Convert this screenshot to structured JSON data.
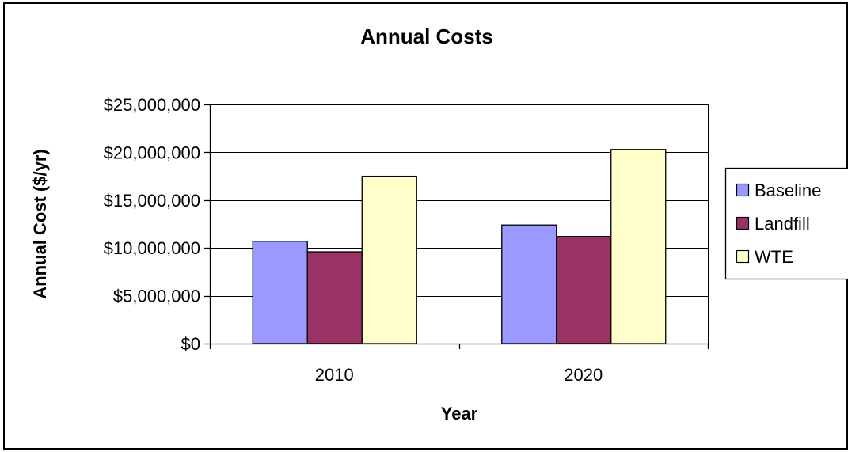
{
  "chart_data": {
    "type": "bar",
    "title": "Annual Costs",
    "xlabel": "Year",
    "ylabel": "Annual Cost ($/yr)",
    "categories": [
      "2010",
      "2020"
    ],
    "ylim": [
      0,
      25000000
    ],
    "yticks": [
      0,
      5000000,
      10000000,
      15000000,
      20000000,
      25000000
    ],
    "ytick_labels": [
      "$0",
      "$5,000,000",
      "$10,000,000",
      "$15,000,000",
      "$20,000,000",
      "$25,000,000"
    ],
    "grid": true,
    "legend_position": "right",
    "series": [
      {
        "name": "Baseline",
        "color": "#9999FF",
        "values": [
          10700000,
          12400000
        ]
      },
      {
        "name": "Landfill",
        "color": "#993366",
        "values": [
          9600000,
          11200000
        ]
      },
      {
        "name": "WTE",
        "color": "#FFFFCC",
        "values": [
          17500000,
          20300000
        ]
      }
    ]
  }
}
